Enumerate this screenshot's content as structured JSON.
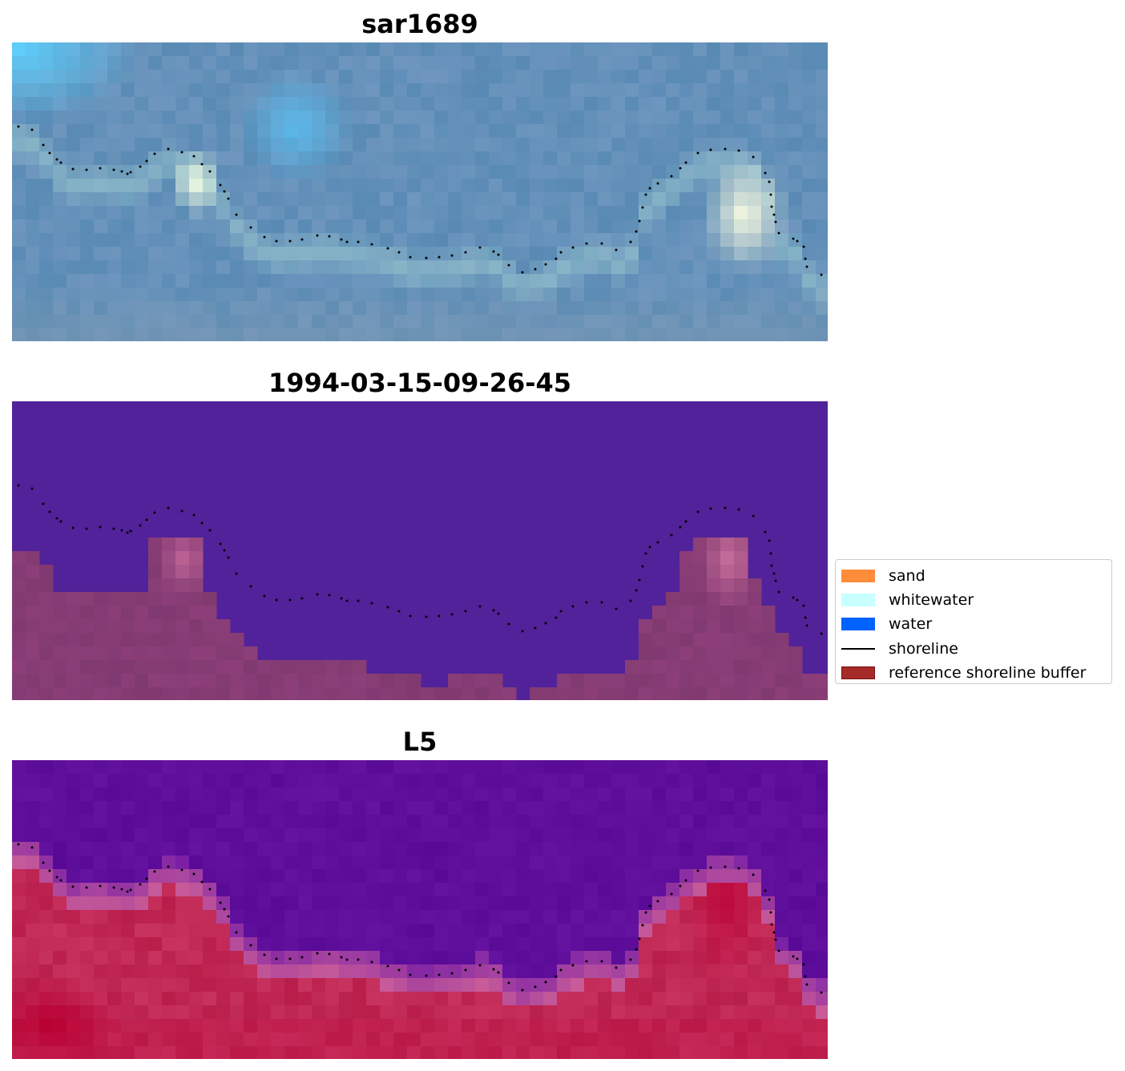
{
  "panels": [
    {
      "title": "sar1689",
      "image": "rgb-satellite-composite"
    },
    {
      "title": "1994-03-15-09-26-45",
      "image": "classification-overlay"
    },
    {
      "title": "L5",
      "image": "water-index-map"
    }
  ],
  "legend": {
    "items": [
      {
        "label": "sand",
        "color": "#ff8c3a",
        "kind": "patch"
      },
      {
        "label": "whitewater",
        "color": "#c8ffff",
        "kind": "patch"
      },
      {
        "label": "water",
        "color": "#0062ff",
        "kind": "patch"
      },
      {
        "label": "shoreline",
        "color": "#000000",
        "kind": "line"
      },
      {
        "label": "reference shoreline buffer",
        "color": "#a52a2a",
        "kind": "patch-outlined"
      }
    ]
  },
  "colors": {
    "rgb_sky": "#5fa6d8",
    "rgb_dark": "#6b8cb5",
    "class_water": "#51229a",
    "class_land": "#844073",
    "ndwi_water": "#6a13a0",
    "ndwi_land": "#c42a58"
  }
}
